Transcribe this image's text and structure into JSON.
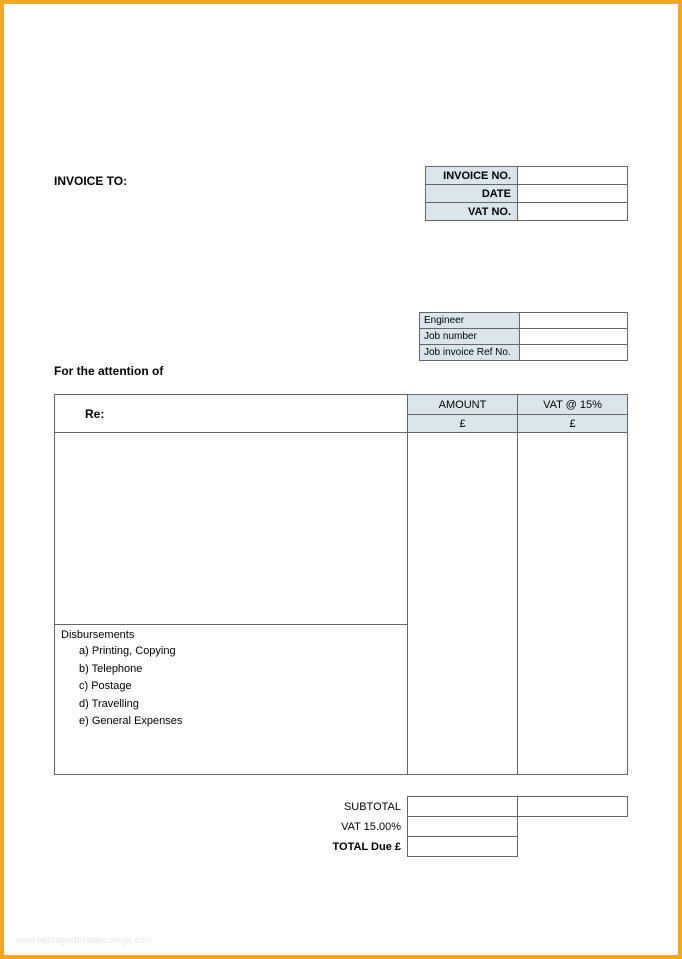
{
  "colors": {
    "border": "#f5a623",
    "header_fill": "#d9e6ec",
    "cell_border": "#666666",
    "background": "#ffffff",
    "watermark": "#e5e5e5"
  },
  "invoice_to_label": "INVOICE TO:",
  "meta": {
    "rows": [
      {
        "label": "INVOICE NO.",
        "value": ""
      },
      {
        "label": "DATE",
        "value": ""
      },
      {
        "label": "VAT NO.",
        "value": ""
      }
    ]
  },
  "job": {
    "rows": [
      {
        "label": "Engineer",
        "value": ""
      },
      {
        "label": "Job number",
        "value": ""
      },
      {
        "label": "Job invoice Ref No.",
        "value": ""
      }
    ]
  },
  "attention_label": "For the attention of",
  "main": {
    "re_label": "Re:",
    "amount_header": "AMOUNT",
    "vat_header": "VAT @ 15%",
    "currency_amount": "£",
    "currency_vat": "£",
    "disbursements_label": "Disbursements",
    "disbursements": [
      "a) Printing, Copying",
      "b) Telephone",
      "c) Postage",
      "d) Travelling",
      "e) General Expenses"
    ]
  },
  "totals": {
    "subtotal_label": "SUBTOTAL",
    "vat_label": "VAT   15.00%",
    "total_due_label": "TOTAL Due £",
    "subtotal_amount": "",
    "subtotal_vat": "",
    "vat_amount": "",
    "total_amount": ""
  },
  "watermark": "www.heritagechristiancollege.com"
}
